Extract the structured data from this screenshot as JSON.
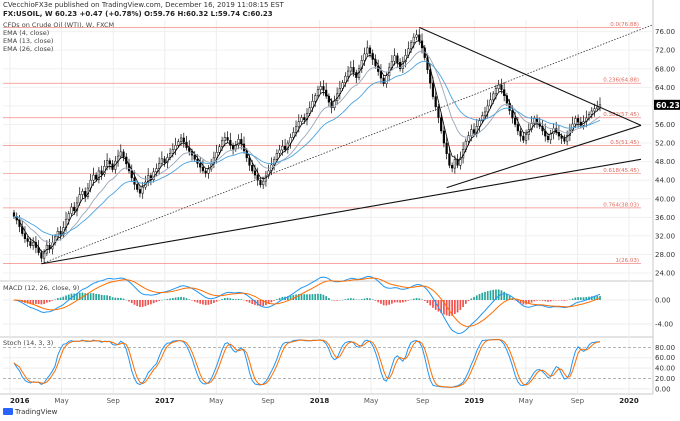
{
  "header": {
    "publisher_line": "CVecchioFX3e published on TradingView.com, December 16, 2019 11:08:15 EST",
    "ohlc_line": "FX:USOIL, W  60.23  +0.47 (+0.78%)  O:59.76  H:60.32  L:59.74  C:60.23"
  },
  "legend": {
    "instrument": "CFDs on Crude Oil (WTI), W, FXCM",
    "ema4": "EMA (4, close)",
    "ema13": "EMA (13, close)",
    "ema26": "EMA (26, close)",
    "macd": "MACD (12, 26, close, 9)",
    "stoch": "Stoch (14, 3, 3)"
  },
  "branding": {
    "logo_text": "TradingView"
  },
  "colors": {
    "up_candle": "#ffffff",
    "down_candle": "#000000",
    "ema4": "#000000",
    "ema13": "#9aa7b8",
    "ema26": "#4aa3df",
    "fib": "#f28b82",
    "macd_line": "#2196f3",
    "signal_line": "#ff6d00",
    "hist_pos": "#26a69a",
    "hist_neg": "#ef5350",
    "price_tag": "#000000"
  },
  "chart_data": [
    {
      "type": "candlestick",
      "title": "CFDs on Crude Oil (WTI), W, FXCM",
      "x_ticks": [
        "2016",
        "May",
        "Sep",
        "2017",
        "May",
        "Sep",
        "2018",
        "May",
        "Sep",
        "2019",
        "May",
        "Sep",
        "2020"
      ],
      "ylim": [
        22.5,
        78.5
      ],
      "y_ticks": [
        24.0,
        28.0,
        32.0,
        36.0,
        40.0,
        44.0,
        48.0,
        52.0,
        56.0,
        60.0,
        64.0,
        68.0,
        72.0,
        76.0
      ],
      "last_price": "60.23",
      "grid": true,
      "candle_closes_approx": [
        36.2,
        35.4,
        34.0,
        32.5,
        31.4,
        30.8,
        29.9,
        30.6,
        29.5,
        28.4,
        27.2,
        28.3,
        30.0,
        29.2,
        30.5,
        31.8,
        33.0,
        32.2,
        33.8,
        35.6,
        36.8,
        38.2,
        37.4,
        39.1,
        40.9,
        41.6,
        40.5,
        42.3,
        44.0,
        45.1,
        44.2,
        46.0,
        45.3,
        47.0,
        48.2,
        47.5,
        46.3,
        48.1,
        49.2,
        50.1,
        49.0,
        47.5,
        46.0,
        44.5,
        43.1,
        42.0,
        41.2,
        42.5,
        43.6,
        45.0,
        44.1,
        45.8,
        46.5,
        47.6,
        48.6,
        47.8,
        48.9,
        49.8,
        50.6,
        51.5,
        52.3,
        53.1,
        52.2,
        51.0,
        50.2,
        49.4,
        48.5,
        47.6,
        46.8,
        46.0,
        45.5,
        46.4,
        47.5,
        48.8,
        50.0,
        51.2,
        52.5,
        53.2,
        52.6,
        51.5,
        50.7,
        51.6,
        52.8,
        51.8,
        50.3,
        48.8,
        47.2,
        46.0,
        45.1,
        44.0,
        43.0,
        43.8,
        44.9,
        46.0,
        47.3,
        48.5,
        49.8,
        50.5,
        51.3,
        50.6,
        52.0,
        53.2,
        54.3,
        55.5,
        56.6,
        57.5,
        57.0,
        58.4,
        59.6,
        61.0,
        62.2,
        63.5,
        64.2,
        63.4,
        62.1,
        60.8,
        59.6,
        61.1,
        62.6,
        63.8,
        65.0,
        66.4,
        67.5,
        68.3,
        67.2,
        66.1,
        68.0,
        69.8,
        71.2,
        72.5,
        71.3,
        70.0,
        68.6,
        67.4,
        66.0,
        64.8,
        66.5,
        68.2,
        69.6,
        70.8,
        69.4,
        68.0,
        69.5,
        70.9,
        72.3,
        73.6,
        74.8,
        75.3,
        74.0,
        72.5,
        70.4,
        67.8,
        64.9,
        62.0,
        59.8,
        57.5,
        54.6,
        52.0,
        49.7,
        47.2,
        46.6,
        48.5,
        47.2,
        48.8,
        50.6,
        52.4,
        53.6,
        54.9,
        54.1,
        55.6,
        56.8,
        57.9,
        58.7,
        60.0,
        61.3,
        62.6,
        63.7,
        64.5,
        63.5,
        62.2,
        60.6,
        59.0,
        57.4,
        56.0,
        54.6,
        53.5,
        52.6,
        53.8,
        54.9,
        56.2,
        57.3,
        56.4,
        55.6,
        54.6,
        53.5,
        52.7,
        54.0,
        55.2,
        54.3,
        53.5,
        53.0,
        52.4,
        53.6,
        54.8,
        56.1,
        57.3,
        56.5,
        55.8,
        56.6,
        57.4,
        58.2,
        58.9,
        59.4,
        59.76,
        60.23
      ],
      "ema_series": [
        "EMA (4, close)",
        "EMA (13, close)",
        "EMA (26, close)"
      ],
      "annotations": [
        {
          "text": "0.0(76.88)",
          "y": 76.88
        },
        {
          "text": "0.236(64.88)",
          "y": 64.88
        },
        {
          "text": "0.382(57.45)",
          "y": 57.45
        },
        {
          "text": "0.5(51.45)",
          "y": 51.45
        },
        {
          "text": "0.618(45.45)",
          "y": 45.45
        },
        {
          "text": "0.764(38.03)",
          "y": 38.03
        },
        {
          "text": "1(26.03)",
          "y": 26.03
        }
      ]
    },
    {
      "type": "line",
      "title": "MACD (12, 26, close, 9)",
      "ylim": [
        -6.0,
        3.0
      ],
      "y_ticks": [
        -4.0,
        0.0
      ],
      "y_tick_labels": [
        "-4.00",
        "0.00"
      ]
    },
    {
      "type": "line",
      "title": "Stoch (14, 3, 3)",
      "ylim": [
        -8,
        100
      ],
      "y_ticks": [
        0,
        20,
        40,
        60,
        80
      ],
      "y_tick_labels": [
        "0.00",
        "20.00",
        "40.00",
        "60.00",
        "80.00"
      ],
      "bands": [
        20,
        80
      ]
    }
  ]
}
